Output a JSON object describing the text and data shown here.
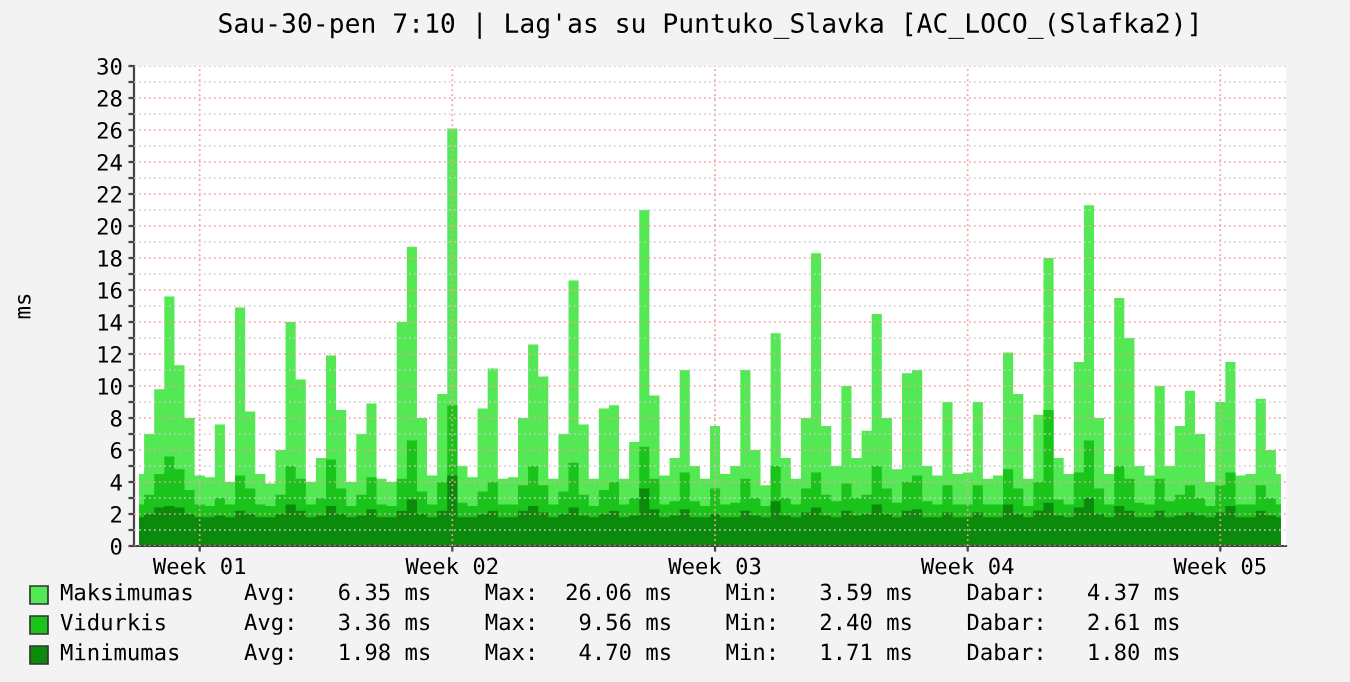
{
  "chart_data": {
    "type": "area",
    "title": "Sau-30-pen 7:10 | Lag'as su Puntuko_Slavka [AC_LOCO_(Slafka2)]",
    "ylabel": "ms",
    "categories": [
      null,
      null,
      null,
      null,
      null,
      null,
      "Week 01",
      null,
      null,
      null,
      null,
      null,
      null,
      null,
      null,
      null,
      null,
      null,
      null,
      null,
      null,
      null,
      null,
      null,
      null,
      null,
      null,
      null,
      null,
      null,
      null,
      "Week 02",
      null,
      null,
      null,
      null,
      null,
      null,
      null,
      null,
      null,
      null,
      null,
      null,
      null,
      null,
      null,
      null,
      null,
      null,
      null,
      null,
      null,
      null,
      null,
      null,
      null,
      "Week 03",
      null,
      null,
      null,
      null,
      null,
      null,
      null,
      null,
      null,
      null,
      null,
      null,
      null,
      null,
      null,
      null,
      null,
      null,
      null,
      null,
      null,
      null,
      null,
      null,
      "Week 04",
      null,
      null,
      null,
      null,
      null,
      null,
      null,
      null,
      null,
      null,
      null,
      null,
      null,
      null,
      null,
      null,
      null,
      null,
      null,
      null,
      null,
      null,
      null,
      null,
      "Week 05",
      null,
      null,
      null,
      null,
      null,
      null
    ],
    "series": [
      {
        "name": "Maksimumas",
        "color": "#54e854",
        "values": [
          4.5,
          7,
          9.8,
          15.6,
          11.3,
          8,
          4.4,
          4.3,
          7.6,
          4.0,
          14.9,
          8.4,
          4.5,
          3.9,
          6.0,
          14.0,
          10.4,
          4.0,
          5.5,
          11.9,
          8.5,
          4.0,
          7.0,
          8.9,
          4.2,
          4.0,
          14,
          18.7,
          8.0,
          4.4,
          9.5,
          26.1,
          5.0,
          4.3,
          8.6,
          11.1,
          4.2,
          4.3,
          8,
          12.6,
          10.6,
          4.2,
          7.0,
          16.6,
          7.6,
          4.2,
          8.6,
          8.8,
          4.2,
          6.5,
          21.0,
          9.4,
          4.4,
          5.5,
          11.0,
          5.0,
          4.2,
          7.5,
          4.5,
          5.0,
          11.0,
          6.0,
          3.8,
          13.3,
          5.5,
          4.2,
          8.0,
          18.3,
          7.5,
          5.0,
          10.0,
          5.5,
          7.2,
          14.5,
          8.0,
          4.8,
          10.8,
          11.0,
          5.0,
          4.4,
          9.0,
          4.5,
          4.6,
          9.0,
          4.2,
          4.4,
          12.1,
          9.5,
          4.2,
          8.2,
          18.0,
          5.5,
          4.5,
          11.5,
          21.3,
          8.0,
          4.5,
          15.5,
          13.0,
          5.0,
          4.4,
          10.0,
          5.0,
          7.5,
          9.7,
          7.0,
          4.0,
          9.0,
          11.5,
          4.4,
          4.5,
          9.2,
          6.0,
          4.5
        ]
      },
      {
        "name": "Vidurkis",
        "color": "#1ac41a",
        "values": [
          2.6,
          3.2,
          4.5,
          5.6,
          4.8,
          3.5,
          2.6,
          2.5,
          3.0,
          2.6,
          4.4,
          3.6,
          2.6,
          2.5,
          3.2,
          5.0,
          4.2,
          2.6,
          3.0,
          5.4,
          3.6,
          2.5,
          3.2,
          4.3,
          2.6,
          2.5,
          4.2,
          6.6,
          3.4,
          2.6,
          4.0,
          8.8,
          2.7,
          2.5,
          3.4,
          4.0,
          2.6,
          2.6,
          3.8,
          5.0,
          3.8,
          2.6,
          3.4,
          5.2,
          3.2,
          2.5,
          3.5,
          4.0,
          2.6,
          3.0,
          6.2,
          4.2,
          2.6,
          2.8,
          4.6,
          2.8,
          2.5,
          3.6,
          2.6,
          2.7,
          4.2,
          3.0,
          2.5,
          5.0,
          3.0,
          2.6,
          3.6,
          4.6,
          3.2,
          2.8,
          3.9,
          3.0,
          3.2,
          5.0,
          3.6,
          2.7,
          4.0,
          4.4,
          2.8,
          2.6,
          3.8,
          2.6,
          2.6,
          3.8,
          2.6,
          2.6,
          4.8,
          3.6,
          2.5,
          4.0,
          8.5,
          2.9,
          2.6,
          4.6,
          6.6,
          3.6,
          2.6,
          5.0,
          4.2,
          2.7,
          2.6,
          4.2,
          2.8,
          3.2,
          3.8,
          3.0,
          2.5,
          3.8,
          4.6,
          2.6,
          2.6,
          3.8,
          3.0,
          2.6
        ]
      },
      {
        "name": "Minimumas",
        "color": "#0b8a0b",
        "values": [
          1.8,
          2.0,
          2.4,
          2.5,
          2.4,
          2.0,
          1.8,
          1.8,
          1.9,
          1.8,
          2.2,
          2.0,
          1.8,
          1.8,
          2.0,
          2.6,
          2.2,
          1.8,
          1.9,
          2.5,
          2.0,
          1.8,
          1.9,
          2.3,
          1.8,
          1.8,
          2.2,
          2.9,
          2.0,
          1.8,
          2.2,
          4.4,
          1.8,
          1.8,
          2.0,
          2.2,
          1.8,
          1.8,
          2.2,
          2.5,
          2.1,
          1.8,
          2.0,
          2.4,
          1.9,
          1.8,
          2.0,
          2.2,
          1.8,
          1.9,
          3.6,
          2.3,
          1.8,
          1.9,
          2.3,
          1.8,
          1.8,
          2.0,
          1.8,
          1.8,
          2.2,
          1.9,
          1.8,
          2.8,
          1.9,
          1.8,
          2.1,
          2.4,
          1.9,
          1.8,
          2.2,
          1.9,
          2.0,
          2.6,
          2.0,
          1.8,
          2.2,
          2.3,
          1.8,
          1.8,
          2.1,
          1.8,
          1.8,
          2.1,
          1.8,
          1.8,
          2.6,
          2.0,
          1.8,
          2.2,
          2.7,
          1.9,
          1.8,
          2.4,
          3.0,
          2.0,
          1.8,
          2.5,
          2.2,
          1.8,
          1.8,
          2.2,
          1.8,
          1.9,
          2.1,
          1.9,
          1.8,
          2.1,
          2.5,
          1.8,
          1.8,
          2.2,
          1.9,
          1.8
        ]
      }
    ],
    "annotations": [
      "Avg:   6.35 ms    Max:  26.06 ms    Min:   3.59 ms    Dabar:   4.37 ms",
      "Avg:   3.36 ms    Max:   9.56 ms    Min:   2.40 ms    Dabar:   2.61 ms",
      "Avg:   1.98 ms    Max:   4.70 ms    Min:   1.71 ms    Dabar:   1.80 ms"
    ],
    "ylim": [
      0,
      30
    ],
    "yticks": [
      0,
      {
        "value": 1,
        "label": null
      },
      2,
      {
        "value": 3,
        "label": null
      },
      4,
      {
        "value": 5,
        "label": null
      },
      6,
      {
        "value": 7,
        "label": null
      },
      8,
      {
        "value": 9,
        "label": null
      },
      10,
      {
        "value": 11,
        "label": null
      },
      12,
      {
        "value": 13,
        "label": null
      },
      14,
      {
        "value": 15,
        "label": null
      },
      16,
      {
        "value": 17,
        "label": null
      },
      18,
      {
        "value": 19,
        "label": null
      },
      20,
      {
        "value": 21,
        "label": null
      },
      22,
      {
        "value": 23,
        "label": null
      },
      24,
      {
        "value": 25,
        "label": null
      },
      26,
      {
        "value": 27,
        "label": null
      },
      28,
      {
        "value": 29,
        "label": null
      },
      30
    ],
    "grid": true,
    "legend": "bottom"
  }
}
